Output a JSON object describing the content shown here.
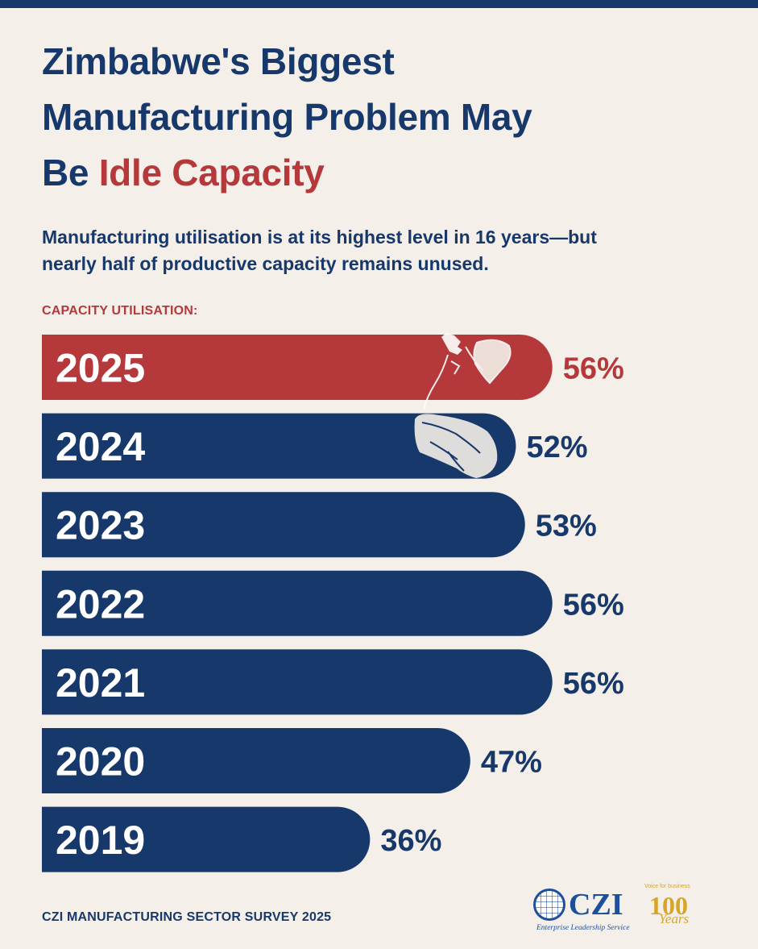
{
  "page": {
    "title_line1": "Zimbabwe's Biggest",
    "title_line2": "Manufacturing Problem May",
    "title_line3_prefix": "Be ",
    "title_line3_accent": "Idle Capacity",
    "subtitle_line1": "Manufacturing utilisation is at its highest level in 16 years—but",
    "subtitle_line2": "nearly half of productive capacity remains unused.",
    "chart_label": "CAPACITY UTILISATION:",
    "footer_source": "CZI MANUFACTURING SECTOR SURVEY 2025"
  },
  "logos": {
    "czi_name": "CZI",
    "czi_tagline": "Enterprise Leadership Service",
    "anniversary_top": "Voice for business",
    "anniversary_number": "100",
    "anniversary_word": "Years"
  },
  "colors": {
    "navy": "#17386b",
    "accent_red": "#b5393b",
    "background": "#f4efe8",
    "white": "#ffffff"
  },
  "chart_data": {
    "type": "bar",
    "orientation": "horizontal",
    "title": "Zimbabwe's Biggest Manufacturing Problem May Be Idle Capacity",
    "subtitle": "Manufacturing utilisation is at its highest level in 16 years—but nearly half of productive capacity remains unused.",
    "ylabel": "CAPACITY UTILISATION:",
    "xlabel": "",
    "categories": [
      "2025",
      "2024",
      "2023",
      "2022",
      "2021",
      "2020",
      "2019"
    ],
    "values": [
      56,
      52,
      53,
      56,
      56,
      47,
      36
    ],
    "value_labels": [
      "56%",
      "52%",
      "53%",
      "56%",
      "56%",
      "47%",
      "36%"
    ],
    "unit": "%",
    "highlight_category": "2025",
    "highlight_color": "#b5393b",
    "bar_color": "#17386b",
    "grid": false,
    "legend": "none"
  }
}
